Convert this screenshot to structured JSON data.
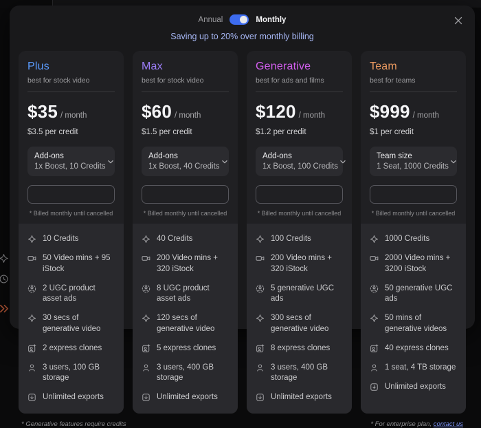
{
  "billing_toggle": {
    "left_label": "Annual",
    "right_label": "Monthly",
    "selected": "Monthly",
    "accent_color": "#3d6cf0"
  },
  "subtitle": "Saving up to 20% over monthly billing",
  "subtitle_color": "#a6b6f3",
  "close_icon": "x",
  "plans": [
    {
      "name": "Plus",
      "name_color": "#5a9bfe",
      "tagline": "best for stock video",
      "price": "$35",
      "period": "/ month",
      "per_credit": "$3.5 per credit",
      "selector_label": "Add-ons",
      "selector_value": "1x Boost, 10 Credits",
      "billed_note": "* Billed monthly until cancelled",
      "features": [
        {
          "icon": "spark",
          "text": "10 Credits"
        },
        {
          "icon": "video-camera",
          "text": "50 Video mins + 95 iStock"
        },
        {
          "icon": "ugc-avatar",
          "text": "2 UGC product asset ads"
        },
        {
          "icon": "spark",
          "text": "30 secs of generative video"
        },
        {
          "icon": "clone",
          "text": "2 express clones"
        },
        {
          "icon": "user",
          "text": "3 users, 100 GB storage"
        },
        {
          "icon": "export",
          "text": "Unlimited exports"
        }
      ]
    },
    {
      "name": "Max",
      "name_color": "#9c7df6",
      "tagline": "best for stock video",
      "price": "$60",
      "period": "/ month",
      "per_credit": "$1.5 per credit",
      "selector_label": "Add-ons",
      "selector_value": "1x Boost, 40 Credits",
      "billed_note": "* Billed monthly until cancelled",
      "features": [
        {
          "icon": "spark",
          "text": "40 Credits"
        },
        {
          "icon": "video-camera",
          "text": "200 Video mins + 320 iStock"
        },
        {
          "icon": "ugc-avatar",
          "text": "8 UGC product asset ads"
        },
        {
          "icon": "spark",
          "text": "120 secs of generative video"
        },
        {
          "icon": "clone",
          "text": "5 express clones"
        },
        {
          "icon": "user",
          "text": "3 users, 400 GB storage"
        },
        {
          "icon": "export",
          "text": "Unlimited exports"
        }
      ]
    },
    {
      "name": "Generative",
      "name_color": "#d45ff0",
      "tagline": "best for ads and films",
      "price": "$120",
      "period": "/ month",
      "per_credit": "$1.2 per credit",
      "selector_label": "Add-ons",
      "selector_value": "1x Boost, 100 Credits",
      "billed_note": "* Billed monthly until cancelled",
      "features": [
        {
          "icon": "spark",
          "text": "100 Credits"
        },
        {
          "icon": "video-camera",
          "text": "200 Video mins + 320 iStock"
        },
        {
          "icon": "ugc-avatar",
          "text": "5 generative UGC ads"
        },
        {
          "icon": "spark",
          "text": "300 secs of generative video"
        },
        {
          "icon": "clone",
          "text": "8 express clones"
        },
        {
          "icon": "user",
          "text": "3 users, 400 GB storage"
        },
        {
          "icon": "export",
          "text": "Unlimited exports"
        }
      ]
    },
    {
      "name": "Team",
      "name_color": "#eb9a60",
      "tagline": "best for teams",
      "price": "$999",
      "period": "/ month",
      "per_credit": "$1 per credit",
      "selector_label": "Team size",
      "selector_value": "1 Seat, 1000 Credits",
      "billed_note": "* Billed monthly until cancelled",
      "features": [
        {
          "icon": "spark",
          "text": "1000 Credits"
        },
        {
          "icon": "video-camera",
          "text": "2000 Video mins + 3200 iStock"
        },
        {
          "icon": "ugc-avatar",
          "text": "50 generative UGC ads"
        },
        {
          "icon": "spark",
          "text": "50 mins of generative videos"
        },
        {
          "icon": "clone",
          "text": "40 express clones"
        },
        {
          "icon": "user",
          "text": "1 seat, 4 TB storage"
        },
        {
          "icon": "export",
          "text": "Unlimited exports"
        }
      ]
    }
  ],
  "footnotes": {
    "left": "* Generative features require credits",
    "right_prefix": "* For enterprise plan, ",
    "right_link": "contact us"
  },
  "background_sidebar_icons": [
    "sparkle-icon",
    "clock-icon",
    "double-chevron-icon"
  ]
}
